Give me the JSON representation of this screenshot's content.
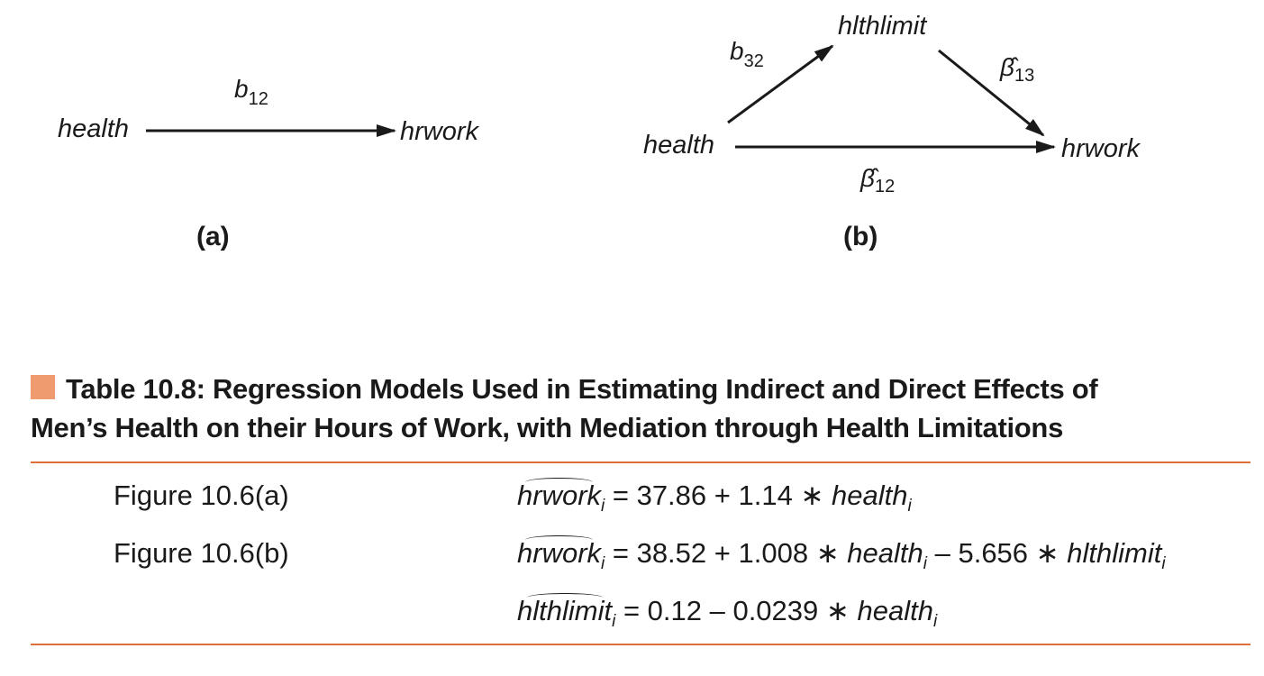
{
  "figure_a": {
    "source_node": "health",
    "target_node": "hrwork",
    "path_coef": "b",
    "path_coef_sub": "12",
    "panel_label": "(a)"
  },
  "figure_b": {
    "source_node": "health",
    "mediator_node": "hlthlimit",
    "target_node": "hrwork",
    "coef_a": "b",
    "coef_a_sub": "32",
    "coef_b": "β̂",
    "coef_b_sub": "13",
    "coef_direct": "β̂",
    "coef_direct_sub": "12",
    "panel_label": "(b)"
  },
  "table": {
    "title_line1": "Table 10.8:  Regression Models Used in Estimating Indirect and Direct Effects of",
    "title_line2": "Men’s Health on their Hours of Work, with Mediation through Health Limitations",
    "rows": [
      {
        "label": "Figure 10.6(a)",
        "lhs": "hrwork",
        "lhs_sub": "i",
        "rhs_1": " = 37.86 + 1.14 ",
        "var_1": "health",
        "var_1_sub": "i"
      },
      {
        "label": "Figure 10.6(b)",
        "lhs": "hrwork",
        "lhs_sub": "i",
        "rhs_1": " = 38.52 + 1.008 ",
        "var_1": "health",
        "var_1_sub": "i",
        "rhs_2": " – 5.656 ",
        "var_2": "hlthlimit",
        "var_2_sub": "i"
      },
      {
        "label": "",
        "lhs": "hlthlimit",
        "lhs_sub": "i",
        "rhs_1": " = 0.12 – 0.0239 ",
        "var_1": "health",
        "var_1_sub": "i"
      }
    ],
    "times_symbol": "∗"
  },
  "colors": {
    "accent_rule": "#e0703a",
    "title_marker": "#ef9a6f",
    "text": "#1a1a1a"
  }
}
